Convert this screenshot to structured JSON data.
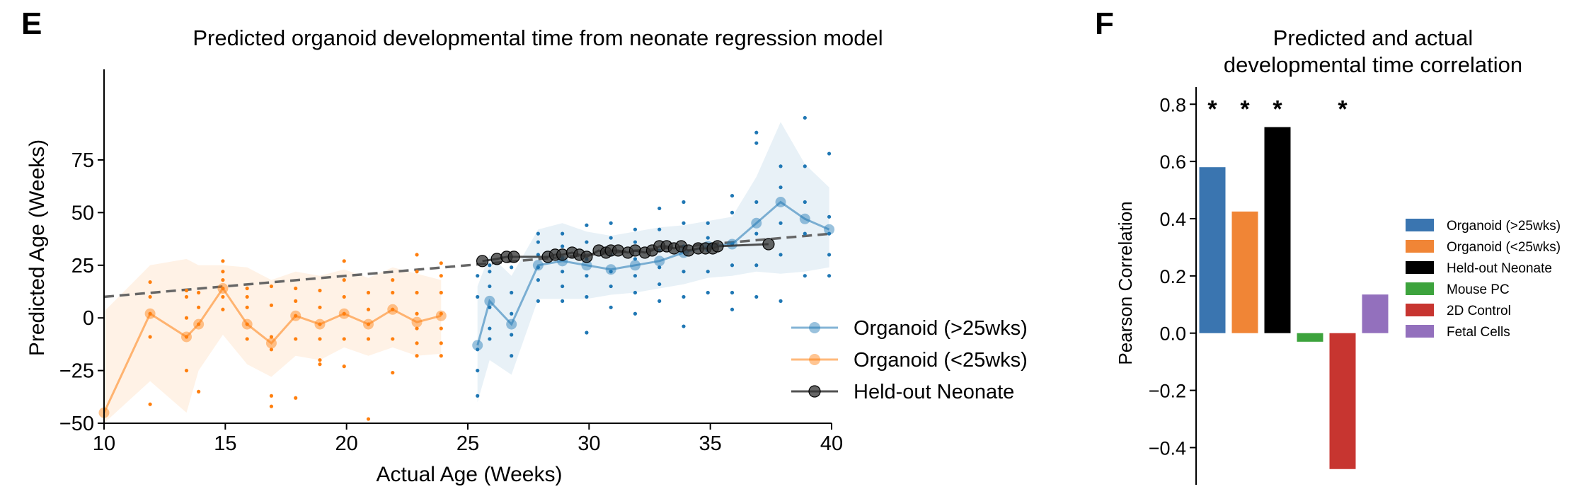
{
  "chart_data": [
    {
      "panel_label": "E",
      "type": "line",
      "title": "Predicted organoid developmental time from neonate regression model",
      "xlabel": "Actual Age (Weeks)",
      "ylabel": "Predicted Age (Weeks)",
      "xlim": [
        10,
        40
      ],
      "ylim": [
        -50,
        118
      ],
      "xticks": [
        10,
        15,
        20,
        25,
        30,
        35,
        40
      ],
      "yticks": [
        -50,
        -25,
        0,
        25,
        50,
        75
      ],
      "legend_position": "lower right",
      "fit_line": {
        "style": "dashed",
        "color": "#666666",
        "x": [
          10,
          40
        ],
        "y": [
          10,
          40
        ]
      },
      "series": [
        {
          "name": "Organoid (>25wks)",
          "color": "#1f77b4",
          "x": [
            25.4,
            25.9,
            26.8,
            27.9,
            28.9,
            29.9,
            30.9,
            31.9,
            32.9,
            33.9,
            34.9,
            35.9,
            36.9,
            37.9,
            38.9,
            39.9
          ],
          "y": [
            -13,
            8,
            -3,
            25,
            27,
            25,
            23,
            25,
            27,
            31,
            34,
            35,
            45,
            55,
            47,
            42
          ],
          "band_lower": [
            -40,
            -20,
            -27,
            9,
            9,
            9,
            11,
            12,
            14,
            16,
            19,
            20,
            22,
            21,
            22,
            24
          ],
          "band_upper": [
            15,
            30,
            20,
            42,
            45,
            41,
            39,
            41,
            43,
            44,
            46,
            48,
            67,
            93,
            73,
            62
          ],
          "points": [
            [
              25.4,
              -37
            ],
            [
              25.4,
              -25
            ],
            [
              25.4,
              -15
            ],
            [
              25.4,
              10
            ],
            [
              25.4,
              20
            ],
            [
              25.9,
              -10
            ],
            [
              25.9,
              -5
            ],
            [
              25.9,
              5
            ],
            [
              25.9,
              15
            ],
            [
              25.9,
              22
            ],
            [
              25.9,
              25
            ],
            [
              26.8,
              -18
            ],
            [
              26.8,
              -8
            ],
            [
              26.8,
              2
            ],
            [
              26.8,
              12
            ],
            [
              26.8,
              24
            ],
            [
              27.9,
              8
            ],
            [
              27.9,
              18
            ],
            [
              27.9,
              24
            ],
            [
              27.9,
              30
            ],
            [
              27.9,
              36
            ],
            [
              27.9,
              40
            ],
            [
              28.9,
              8
            ],
            [
              28.9,
              15
            ],
            [
              28.9,
              22
            ],
            [
              28.9,
              28
            ],
            [
              28.9,
              34
            ],
            [
              28.9,
              40
            ],
            [
              29.9,
              -7
            ],
            [
              29.9,
              10
            ],
            [
              29.9,
              20
            ],
            [
              29.9,
              28
            ],
            [
              29.9,
              36
            ],
            [
              29.9,
              44
            ],
            [
              30.9,
              5
            ],
            [
              30.9,
              15
            ],
            [
              30.9,
              22
            ],
            [
              30.9,
              30
            ],
            [
              30.9,
              38
            ],
            [
              30.9,
              45
            ],
            [
              31.9,
              2
            ],
            [
              31.9,
              12
            ],
            [
              31.9,
              20
            ],
            [
              31.9,
              28
            ],
            [
              31.9,
              36
            ],
            [
              31.9,
              42
            ],
            [
              32.9,
              8
            ],
            [
              32.9,
              16
            ],
            [
              32.9,
              24
            ],
            [
              32.9,
              32
            ],
            [
              32.9,
              42
            ],
            [
              32.9,
              52
            ],
            [
              33.9,
              -4
            ],
            [
              33.9,
              10
            ],
            [
              33.9,
              22
            ],
            [
              33.9,
              34
            ],
            [
              33.9,
              45
            ],
            [
              33.9,
              55
            ],
            [
              34.9,
              12
            ],
            [
              34.9,
              22
            ],
            [
              34.9,
              32
            ],
            [
              34.9,
              38
            ],
            [
              34.9,
              45
            ],
            [
              35.9,
              4
            ],
            [
              35.9,
              12
            ],
            [
              35.9,
              25
            ],
            [
              35.9,
              35
            ],
            [
              35.9,
              50
            ],
            [
              35.9,
              58
            ],
            [
              36.9,
              10
            ],
            [
              36.9,
              25
            ],
            [
              36.9,
              40
            ],
            [
              36.9,
              55
            ],
            [
              36.9,
              83
            ],
            [
              36.9,
              88
            ],
            [
              37.9,
              8
            ],
            [
              37.9,
              30
            ],
            [
              37.9,
              45
            ],
            [
              37.9,
              62
            ],
            [
              37.9,
              72
            ],
            [
              38.9,
              20
            ],
            [
              38.9,
              40
            ],
            [
              38.9,
              55
            ],
            [
              38.9,
              72
            ],
            [
              38.9,
              95
            ],
            [
              39.9,
              20
            ],
            [
              39.9,
              30
            ],
            [
              39.9,
              40
            ],
            [
              39.9,
              48
            ],
            [
              39.9,
              78
            ]
          ]
        },
        {
          "name": "Organoid (<25wks)",
          "color": "#ff7f0e",
          "x": [
            10,
            11.9,
            13.4,
            13.9,
            14.9,
            15.9,
            16.9,
            17.9,
            18.9,
            19.9,
            20.9,
            21.9,
            22.9,
            23.9
          ],
          "y": [
            -45,
            2,
            -9,
            -3,
            14,
            -3,
            -12,
            1,
            -3,
            2,
            -3,
            4,
            -2,
            1
          ],
          "band_lower": [
            -50,
            -30,
            -45,
            -25,
            -8,
            -22,
            -28,
            -18,
            -20,
            -14,
            -18,
            -14,
            -18,
            -17
          ],
          "band_upper": [
            3,
            25,
            28,
            25,
            25,
            24,
            18,
            22,
            20,
            23,
            19,
            24,
            21,
            18
          ],
          "points": [
            [
              11.9,
              -41
            ],
            [
              11.9,
              -9
            ],
            [
              11.9,
              2
            ],
            [
              11.9,
              10
            ],
            [
              11.9,
              17
            ],
            [
              13.4,
              -25
            ],
            [
              13.4,
              -9
            ],
            [
              13.4,
              0
            ],
            [
              13.4,
              10
            ],
            [
              13.4,
              13
            ],
            [
              13.9,
              -35
            ],
            [
              13.9,
              -3
            ],
            [
              13.9,
              5
            ],
            [
              13.9,
              12
            ],
            [
              14.9,
              4
            ],
            [
              14.9,
              10
            ],
            [
              14.9,
              14
            ],
            [
              14.9,
              18
            ],
            [
              14.9,
              22
            ],
            [
              14.9,
              27
            ],
            [
              15.9,
              -10
            ],
            [
              15.9,
              -3
            ],
            [
              15.9,
              5
            ],
            [
              15.9,
              10
            ],
            [
              15.9,
              14
            ],
            [
              16.9,
              -42
            ],
            [
              16.9,
              -37
            ],
            [
              16.9,
              -15
            ],
            [
              16.9,
              -9
            ],
            [
              16.9,
              6
            ],
            [
              16.9,
              15
            ],
            [
              17.9,
              -38
            ],
            [
              17.9,
              -10
            ],
            [
              17.9,
              1
            ],
            [
              17.9,
              8
            ],
            [
              17.9,
              14
            ],
            [
              18.9,
              -22
            ],
            [
              18.9,
              -20
            ],
            [
              18.9,
              -10
            ],
            [
              18.9,
              -3
            ],
            [
              18.9,
              5
            ],
            [
              18.9,
              13
            ],
            [
              19.9,
              -23
            ],
            [
              19.9,
              -10
            ],
            [
              19.9,
              2
            ],
            [
              19.9,
              10
            ],
            [
              19.9,
              18
            ],
            [
              19.9,
              27
            ],
            [
              20.9,
              -48
            ],
            [
              20.9,
              -10
            ],
            [
              20.9,
              -3
            ],
            [
              20.9,
              4
            ],
            [
              20.9,
              12
            ],
            [
              21.9,
              -26
            ],
            [
              21.9,
              -10
            ],
            [
              21.9,
              4
            ],
            [
              21.9,
              12
            ],
            [
              21.9,
              18
            ],
            [
              22.9,
              -18
            ],
            [
              22.9,
              -12
            ],
            [
              22.9,
              -5
            ],
            [
              22.9,
              2
            ],
            [
              22.9,
              12
            ],
            [
              22.9,
              22
            ],
            [
              22.9,
              30
            ],
            [
              23.9,
              -18
            ],
            [
              23.9,
              -12
            ],
            [
              23.9,
              -5
            ],
            [
              23.9,
              2
            ],
            [
              23.9,
              12
            ],
            [
              23.9,
              20
            ],
            [
              23.9,
              26
            ]
          ]
        },
        {
          "name": "Held-out Neonate",
          "color": "#333333",
          "x": [
            25.6,
            26.2,
            26.6,
            26.9,
            28.3,
            28.6,
            28.9,
            29.3,
            29.6,
            29.9,
            30.4,
            30.7,
            30.9,
            31.2,
            31.6,
            31.9,
            32.3,
            32.6,
            32.9,
            33.2,
            33.5,
            33.8,
            34.1,
            34.5,
            34.8,
            35.1,
            35.3,
            37.4
          ],
          "y": [
            27,
            28,
            29,
            29,
            29,
            30,
            30,
            31,
            30,
            29,
            32,
            31,
            32,
            32,
            31,
            32,
            31,
            32,
            34,
            34,
            33,
            34,
            32,
            33,
            33,
            33,
            34,
            35
          ]
        }
      ]
    },
    {
      "panel_label": "F",
      "type": "bar",
      "title": "Predicted and actual\ndevelopmental time correlation",
      "xlabel": "",
      "ylabel": "Pearson Correlation",
      "ylim": [
        -0.53,
        0.86
      ],
      "yticks": [
        -0.4,
        -0.2,
        0.0,
        0.2,
        0.4,
        0.6,
        0.8
      ],
      "legend_position": "right",
      "categories": [
        "Organoid (>25wks)",
        "Organoid (<25wks)",
        "Held-out Neonate",
        "Mouse PC",
        "2D Control",
        "Fetal Cells"
      ],
      "values": [
        0.58,
        0.425,
        0.72,
        -0.03,
        -0.475,
        0.135
      ],
      "colors": [
        "#3a75b0",
        "#f08536",
        "#000000",
        "#3da33d",
        "#c73530",
        "#9370bd"
      ],
      "significant": [
        true,
        true,
        true,
        false,
        true,
        false
      ],
      "significance_marker": "*"
    }
  ]
}
